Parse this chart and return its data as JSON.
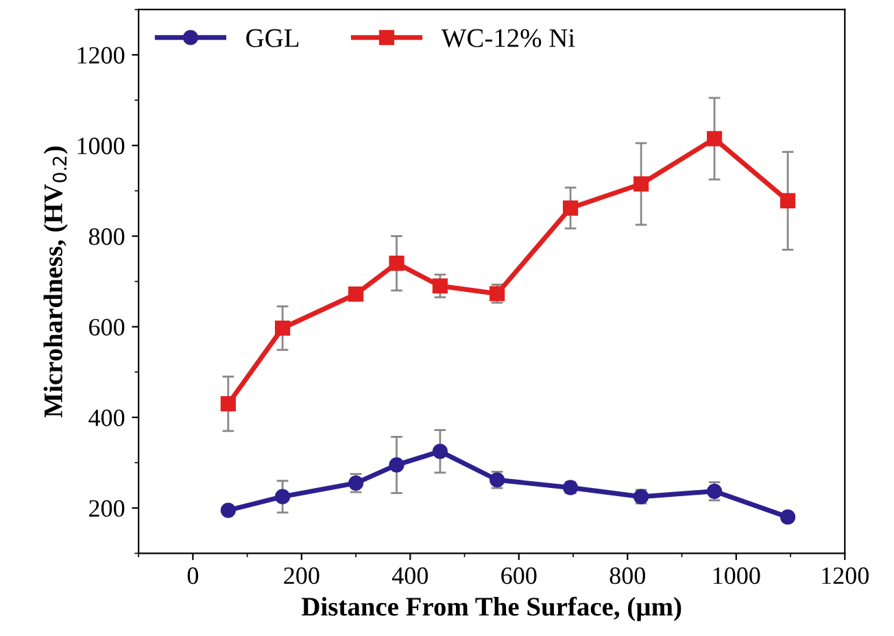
{
  "chart_data": {
    "type": "line",
    "xlabel": "Distance From The Surface, (µm)",
    "ylabel": "Microhardness, (HV$_{0.2}$)",
    "x": [
      65,
      165,
      300,
      375,
      455,
      560,
      695,
      825,
      960,
      1095
    ],
    "series": [
      {
        "name": "GGL",
        "color": "#2e1f8f",
        "marker": "circle",
        "values": [
          195,
          225,
          255,
          295,
          325,
          262,
          245,
          225,
          237,
          180
        ],
        "errors": [
          null,
          35,
          20,
          62,
          47,
          18,
          12,
          15,
          20,
          10
        ]
      },
      {
        "name": "WC-12% Ni",
        "color": "#e02020",
        "marker": "square",
        "values": [
          430,
          597,
          672,
          740,
          690,
          673,
          862,
          915,
          1015,
          878
        ],
        "errors": [
          60,
          48,
          null,
          60,
          25,
          20,
          45,
          90,
          90,
          108
        ]
      }
    ],
    "xlim": [
      -100,
      1200
    ],
    "xticks": [
      0,
      200,
      400,
      600,
      800,
      1000,
      1200
    ],
    "ylim": [
      100,
      1300
    ],
    "yticks": [
      200,
      400,
      600,
      800,
      1000,
      1200
    ],
    "grid": false,
    "legend": "top left"
  }
}
